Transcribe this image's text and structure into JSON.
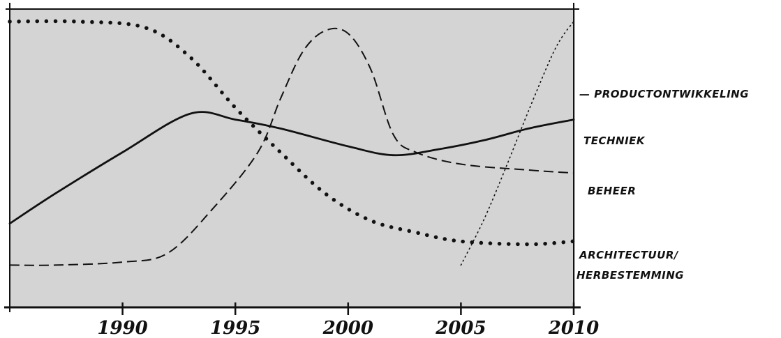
{
  "colors": {
    "plot_background": "#d4d4d4",
    "ink": "#111111",
    "page_background": "#ffffff"
  },
  "chart_data": {
    "type": "line",
    "title": "",
    "xlabel": "",
    "ylabel": "",
    "xlim": [
      1985,
      2010
    ],
    "ylim": [
      0,
      1
    ],
    "grid": false,
    "x_ticks": [
      1990,
      1995,
      2000,
      2005,
      2010
    ],
    "x_tick_labels": [
      "1990",
      "1995",
      "2000",
      "2005",
      "2010"
    ],
    "series": [
      {
        "name": "PRODUCTONTWIKKELING",
        "style": "dotted",
        "x": [
          2005,
          2006,
          2007,
          2008,
          2009,
          2009.5,
          2010
        ],
        "y": [
          0.14,
          0.29,
          0.47,
          0.66,
          0.84,
          0.91,
          0.96
        ]
      },
      {
        "name": "TECHNIEK",
        "style": "solid",
        "x": [
          1985,
          1987,
          1990,
          1993,
          1995,
          1997,
          2000,
          2002,
          2004,
          2006,
          2008,
          2010
        ],
        "y": [
          0.28,
          0.38,
          0.52,
          0.65,
          0.63,
          0.6,
          0.54,
          0.51,
          0.53,
          0.56,
          0.6,
          0.63
        ]
      },
      {
        "name": "BEHEER",
        "style": "dashed",
        "x": [
          1985,
          1987,
          1990,
          1992,
          1994,
          1996,
          1997,
          1998,
          1999,
          2000,
          2001,
          2002,
          2003,
          2005,
          2008,
          2010
        ],
        "y": [
          0.14,
          0.14,
          0.15,
          0.18,
          0.33,
          0.52,
          0.7,
          0.86,
          0.93,
          0.92,
          0.8,
          0.58,
          0.52,
          0.48,
          0.46,
          0.45
        ]
      },
      {
        "name": "ARCHITECTUUR/ HERBESTEMMING",
        "style": "heavy-dotted",
        "x": [
          1985,
          1988,
          1991,
          1993,
          1995,
          1997,
          1999,
          2001,
          2003,
          2005,
          2008,
          2010
        ],
        "y": [
          0.96,
          0.96,
          0.94,
          0.84,
          0.67,
          0.52,
          0.38,
          0.29,
          0.25,
          0.22,
          0.21,
          0.22
        ]
      }
    ]
  },
  "series_labels": {
    "productontwikkeling": "— PRODUCTONTWIKKELING",
    "techniek": "TECHNIEK",
    "beheer": "BEHEER",
    "architectuur_line1": "ARCHITECTUUR/",
    "architectuur_line2": "HERBESTEMMING"
  }
}
